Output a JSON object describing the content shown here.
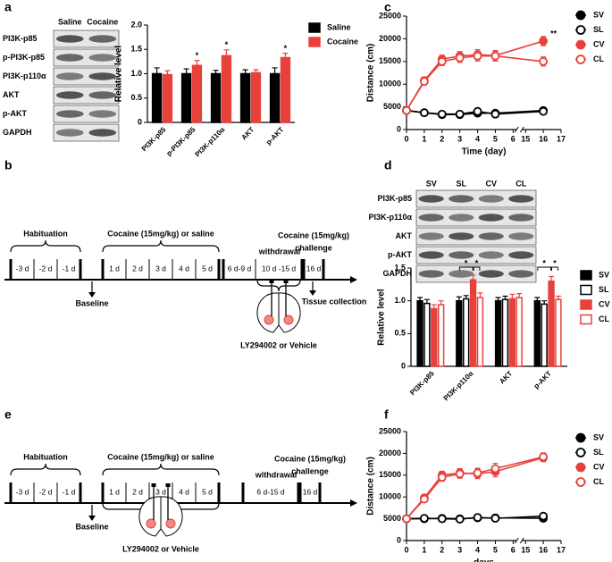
{
  "panel_labels": [
    "a",
    "b",
    "c",
    "d",
    "e",
    "f"
  ],
  "blots": [
    {
      "columns": [
        "Saline",
        "Cocaine"
      ],
      "rows": [
        "PI3K-p85",
        "p-PI3K-p85",
        "PI3K-p110α",
        "AKT",
        "p-AKT",
        "GAPDH"
      ]
    },
    {
      "columns": [
        "SV",
        "SL",
        "CV",
        "CL"
      ],
      "rows": [
        "PI3K-p85",
        "PI3K-p110α",
        "AKT",
        "p-AKT",
        "GAPDH"
      ]
    }
  ],
  "protocols": [
    {
      "habituation_label": "Habituation",
      "habituation_days": [
        "-3 d",
        "-2 d",
        "-1 d"
      ],
      "treatment_label": "Cocaine (15mg/kg) or saline",
      "treatment_days": [
        "1 d",
        "2 d",
        "3 d",
        "4 d",
        "5 d"
      ],
      "withdrawal_label": "withdrawal",
      "withdrawal_days": [
        "6 d-9 d",
        "10 d -15 d"
      ],
      "challenge_label": [
        "Cocaine (15mg/kg)",
        "challenge"
      ],
      "challenge_day": "16 d",
      "baseline_label": "Baseline",
      "collection_label": "Tissue collection",
      "infusion_label": "LY294002 or Vehicle"
    },
    {
      "habituation_label": "Habituation",
      "habituation_days": [
        "-3 d",
        "-2 d",
        "-1 d"
      ],
      "treatment_label": "Cocaine (15mg/kg) or saline",
      "treatment_days": [
        "1 d",
        "2 d",
        "3 d",
        "4 d",
        "5 d"
      ],
      "withdrawal_label": "withdrawal",
      "withdrawal_days": [
        "6 d-15 d"
      ],
      "challenge_label": [
        "Cocaine (15mg/kg)",
        "challenge"
      ],
      "challenge_day": "16 d",
      "baseline_label": "Baseline",
      "infusion_label": "LY294002 or Vehicle"
    }
  ],
  "chart_data": [
    {
      "type": "bar",
      "ylabel": "Relative level",
      "categories": [
        "PI3K-p85",
        "p-PI3K-p85",
        "PI3K-p110α",
        "AKT",
        "p-AKT"
      ],
      "series": [
        {
          "name": "Saline",
          "color": "#000000",
          "marker": "filled",
          "values": [
            1.0,
            1.0,
            1.0,
            1.0,
            1.0
          ],
          "errors": [
            0.12,
            0.1,
            0.07,
            0.08,
            0.12
          ]
        },
        {
          "name": "Cocaine",
          "color": "#e8413c",
          "marker": "filled",
          "values": [
            0.98,
            1.17,
            1.37,
            1.02,
            1.33
          ],
          "errors": [
            0.08,
            0.1,
            0.12,
            0.06,
            0.09
          ]
        }
      ],
      "ylim": [
        0,
        2
      ],
      "yticks": [
        0,
        0.5,
        {
          "value": 1,
          "label": "1.0"
        },
        1.5,
        {
          "value": 2,
          "label": "2.0"
        }
      ],
      "annotations": [
        {
          "text": "*",
          "category": "p-PI3K-p85",
          "series": "Cocaine"
        },
        {
          "text": "*",
          "category": "PI3K-p110α",
          "series": "Cocaine"
        },
        {
          "text": "*",
          "category": "p-AKT",
          "series": "Cocaine"
        }
      ]
    },
    {
      "type": "line",
      "xlabel": "Time (day)",
      "ylabel": "Distance (cm)",
      "x": [
        0,
        1,
        2,
        3,
        4,
        5,
        16
      ],
      "series": [
        {
          "name": "SV",
          "color": "#000000",
          "marker": "filled",
          "values": [
            4200,
            3700,
            3300,
            3300,
            3600,
            3600,
            4200
          ],
          "errors": [
            300,
            300,
            300,
            300,
            300,
            300,
            400
          ]
        },
        {
          "name": "SL",
          "color": "#000000",
          "marker": "open",
          "values": [
            4200,
            3700,
            3400,
            3400,
            4000,
            3400,
            4000
          ],
          "errors": [
            300,
            300,
            300,
            300,
            300,
            300,
            400
          ]
        },
        {
          "name": "CV",
          "color": "#e8413c",
          "marker": "filled",
          "values": [
            4200,
            10800,
            15500,
            16200,
            16500,
            16300,
            19500
          ],
          "errors": [
            300,
            800,
            900,
            1000,
            1100,
            1100,
            1000
          ]
        },
        {
          "name": "CL",
          "color": "#e8413c",
          "marker": "open",
          "values": [
            4200,
            10600,
            15000,
            15800,
            16200,
            16200,
            15000
          ],
          "errors": [
            300,
            800,
            900,
            1000,
            1100,
            1100,
            1000
          ]
        }
      ],
      "xlim": [
        0,
        17
      ],
      "xbreak": [
        6,
        15
      ],
      "xticks": [
        0,
        1,
        2,
        3,
        4,
        5,
        6,
        15,
        16,
        17
      ],
      "ylim": [
        0,
        25000
      ],
      "yticks": [
        0,
        5000,
        10000,
        15000,
        20000,
        25000
      ],
      "annotations": [
        {
          "text": "**",
          "x": 16
        }
      ]
    },
    {
      "type": "bar",
      "ylabel": "Relative level",
      "categories": [
        "PI3K-p85",
        "PI3K-p110α",
        "AKT",
        "p-AKT"
      ],
      "series": [
        {
          "name": "SV",
          "color": "#000000",
          "marker": "filled",
          "values": [
            1.0,
            1.0,
            1.0,
            1.0
          ],
          "errors": [
            0.05,
            0.06,
            0.05,
            0.05
          ]
        },
        {
          "name": "SL",
          "color": "#000000",
          "marker": "open",
          "values": [
            0.96,
            1.03,
            1.02,
            0.95
          ],
          "errors": [
            0.06,
            0.05,
            0.05,
            0.05
          ]
        },
        {
          "name": "CV",
          "color": "#e8413c",
          "marker": "filled",
          "values": [
            0.88,
            1.32,
            1.03,
            1.3
          ],
          "errors": [
            0.06,
            0.07,
            0.07,
            0.07
          ]
        },
        {
          "name": "CL",
          "color": "#e8413c",
          "marker": "open",
          "values": [
            0.94,
            1.05,
            1.05,
            1.02
          ],
          "errors": [
            0.06,
            0.07,
            0.06,
            0.05
          ]
        }
      ],
      "ylim": [
        0,
        1.5
      ],
      "yticks": [
        0,
        0.5,
        {
          "value": 1,
          "label": "1.0"
        },
        1.5
      ],
      "annotations": [
        {
          "text": "*",
          "category": "PI3K-p110α",
          "from": "SV",
          "to": "CV"
        },
        {
          "text": "*",
          "category": "PI3K-p110α",
          "from": "CV",
          "to": "CL"
        },
        {
          "text": "*",
          "category": "p-AKT",
          "from": "SV",
          "to": "CV"
        },
        {
          "text": "*",
          "category": "p-AKT",
          "from": "CV",
          "to": "CL"
        }
      ]
    },
    {
      "type": "line",
      "xlabel": "days",
      "ylabel": "Distance (cm)",
      "x": [
        0,
        1,
        2,
        3,
        4,
        5,
        16
      ],
      "series": [
        {
          "name": "SV",
          "color": "#000000",
          "marker": "filled",
          "values": [
            5000,
            5000,
            5100,
            5000,
            5200,
            5200,
            5100
          ],
          "errors": [
            300,
            300,
            300,
            300,
            300,
            300,
            400
          ]
        },
        {
          "name": "SL",
          "color": "#000000",
          "marker": "open",
          "values": [
            5000,
            5100,
            5000,
            4900,
            5300,
            5100,
            5600
          ],
          "errors": [
            300,
            300,
            300,
            300,
            300,
            300,
            400
          ]
        },
        {
          "name": "CV",
          "color": "#e8413c",
          "marker": "filled",
          "values": [
            5000,
            9800,
            15000,
            15500,
            15300,
            15800,
            19000
          ],
          "errors": [
            300,
            700,
            900,
            1000,
            1100,
            1200,
            900
          ]
        },
        {
          "name": "CL",
          "color": "#e8413c",
          "marker": "open",
          "values": [
            5000,
            9500,
            14500,
            15300,
            15500,
            16500,
            19200
          ],
          "errors": [
            300,
            700,
            900,
            1000,
            1100,
            1200,
            900
          ]
        }
      ],
      "xlim": [
        0,
        17
      ],
      "xbreak": [
        6,
        15
      ],
      "xticks": [
        0,
        1,
        2,
        3,
        4,
        5,
        6,
        15,
        16,
        17
      ],
      "ylim": [
        0,
        25000
      ],
      "yticks": [
        0,
        5000,
        10000,
        15000,
        20000,
        25000
      ],
      "annotations": []
    }
  ]
}
